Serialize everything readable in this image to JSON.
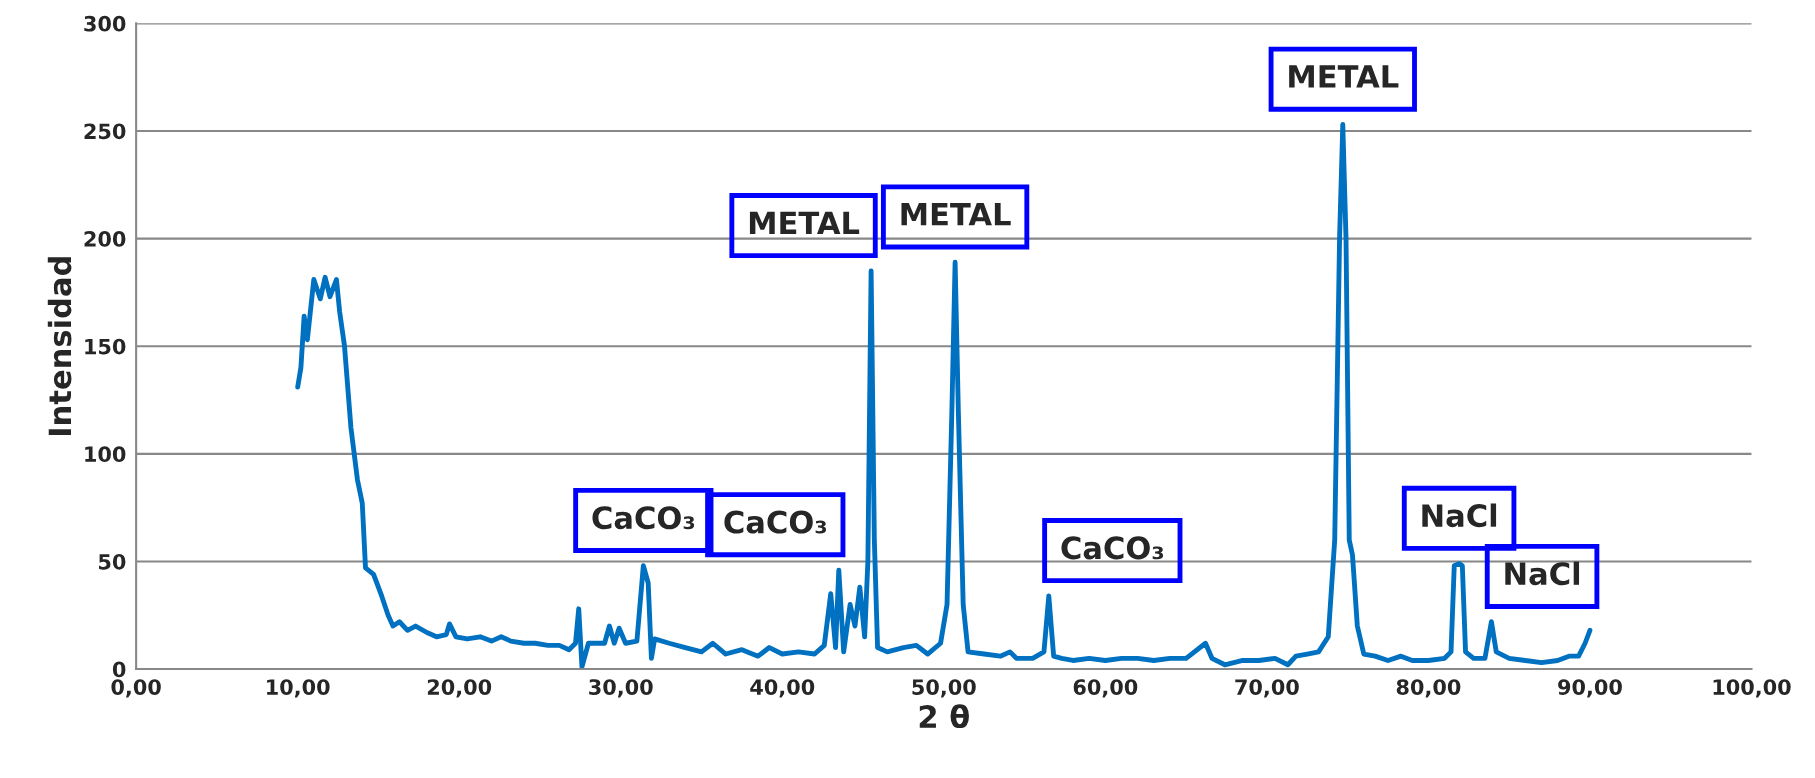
{
  "chart_data": {
    "type": "line",
    "xlabel": "2 θ",
    "ylabel": "Intensidad",
    "xlim": [
      0,
      100
    ],
    "ylim": [
      0,
      300
    ],
    "xticks": [
      {
        "value": 0,
        "label": "0,00"
      },
      {
        "value": 10,
        "label": "10,00"
      },
      {
        "value": 20,
        "label": "20,00"
      },
      {
        "value": 30,
        "label": "30,00"
      },
      {
        "value": 40,
        "label": "40,00"
      },
      {
        "value": 50,
        "label": "50,00"
      },
      {
        "value": 60,
        "label": "60,00"
      },
      {
        "value": 70,
        "label": "70,00"
      },
      {
        "value": 80,
        "label": "80,00"
      },
      {
        "value": 90,
        "label": "90,00"
      },
      {
        "value": 100,
        "label": "100,00"
      }
    ],
    "yticks": [
      0,
      50,
      100,
      150,
      200,
      250,
      300
    ],
    "grid": "y",
    "legend": false,
    "marker": "none",
    "line_style": "solid",
    "series": [
      {
        "color": "#0070c0",
        "x": [
          10.0,
          10.2,
          10.4,
          10.6,
          11.0,
          11.4,
          11.7,
          12.0,
          12.4,
          12.6,
          12.9,
          13.3,
          13.7,
          14.0,
          14.2,
          14.7,
          15.2,
          15.6,
          15.9,
          16.3,
          16.8,
          17.3,
          18.0,
          18.6,
          19.2,
          19.4,
          19.8,
          20.5,
          21.3,
          22.0,
          22.6,
          23.2,
          24.0,
          24.7,
          25.5,
          26.2,
          26.8,
          27.2,
          27.4,
          27.6,
          28.0,
          29.0,
          29.3,
          29.6,
          29.9,
          30.3,
          31.0,
          31.4,
          31.7,
          31.9,
          32.1,
          33.0,
          34.0,
          35.0,
          35.7,
          36.5,
          37.5,
          38.5,
          39.2,
          40.0,
          41.0,
          42.0,
          42.6,
          43.0,
          43.3,
          43.5,
          43.8,
          44.2,
          44.5,
          44.8,
          45.1,
          45.3,
          45.5,
          45.7,
          45.9,
          46.5,
          47.5,
          48.3,
          49.0,
          49.8,
          50.2,
          50.5,
          50.7,
          50.9,
          51.2,
          51.5,
          52.5,
          53.5,
          54.1,
          54.5,
          55.5,
          56.2,
          56.5,
          56.8,
          57.3,
          58.0,
          59.0,
          60.0,
          61.0,
          62.0,
          63.0,
          64.0,
          65.0,
          66.2,
          66.6,
          67.4,
          68.5,
          69.5,
          70.5,
          71.3,
          71.8,
          72.5,
          73.2,
          73.8,
          74.2,
          74.5,
          74.7,
          74.9,
          75.1,
          75.3,
          75.6,
          76.0,
          76.7,
          77.5,
          78.3,
          79.0,
          80.0,
          81.0,
          81.4,
          81.6,
          81.9,
          82.1,
          82.3,
          82.8,
          83.5,
          83.9,
          84.2,
          85.0,
          86.0,
          87.0,
          88.0,
          88.7,
          89.3,
          89.7,
          90.0
        ],
        "values": [
          131,
          140,
          164,
          153,
          181,
          172,
          182,
          173,
          181,
          166,
          150,
          112,
          88,
          77,
          47,
          44,
          34,
          25,
          20,
          22,
          18,
          20,
          17,
          15,
          16,
          21,
          15,
          14,
          15,
          13,
          15,
          13,
          12,
          12,
          11,
          11,
          9,
          12,
          28,
          1,
          12,
          12,
          20,
          12,
          19,
          12,
          13,
          48,
          40,
          5,
          14,
          12,
          10,
          8,
          12,
          7,
          9,
          6,
          10,
          7,
          8,
          7,
          11,
          35,
          10,
          46,
          8,
          30,
          20,
          38,
          15,
          50,
          185,
          60,
          10,
          8,
          10,
          11,
          7,
          12,
          30,
          120,
          189,
          120,
          30,
          8,
          7,
          6,
          8,
          5,
          5,
          8,
          34,
          6,
          5,
          4,
          5,
          4,
          5,
          5,
          4,
          5,
          5,
          12,
          5,
          2,
          4,
          4,
          5,
          2,
          6,
          7,
          8,
          15,
          60,
          200,
          253,
          200,
          60,
          53,
          20,
          7,
          6,
          4,
          6,
          4,
          4,
          5,
          8,
          48,
          49,
          48,
          8,
          5,
          5,
          22,
          8,
          5,
          4,
          3,
          4,
          6,
          6,
          12,
          18
        ]
      }
    ],
    "annotations": [
      {
        "text": "CaCO₃",
        "x": 31.4,
        "y": 48
      },
      {
        "text": "CaCO₃",
        "x": 43.5,
        "y": 46
      },
      {
        "text": "METAL",
        "x": 45.5,
        "y": 185
      },
      {
        "text": "METAL",
        "x": 50.7,
        "y": 189
      },
      {
        "text": "CaCO₃",
        "x": 56.5,
        "y": 34
      },
      {
        "text": "METAL",
        "x": 74.7,
        "y": 253
      },
      {
        "text": "NaCl",
        "x": 81.9,
        "y": 49
      },
      {
        "text": "NaCl",
        "x": 83.9,
        "y": 22
      }
    ]
  }
}
